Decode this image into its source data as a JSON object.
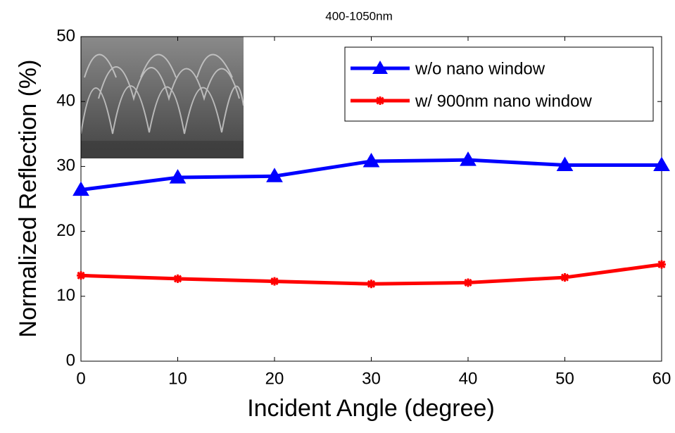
{
  "chart_data": {
    "type": "line",
    "title": "400-1050nm",
    "xlabel": "Incident Angle (degree)",
    "ylabel": "Normalized Reflection (%)",
    "x": [
      0,
      10,
      20,
      30,
      40,
      50,
      60
    ],
    "series": [
      {
        "name": "w/o nano window",
        "color": "#0000ff",
        "marker": "triangle",
        "values": [
          26.4,
          28.3,
          28.5,
          30.8,
          31.0,
          30.2,
          30.2
        ]
      },
      {
        "name": "w/ 900nm nano window",
        "color": "#ff0000",
        "marker": "star",
        "values": [
          13.2,
          12.7,
          12.3,
          11.9,
          12.1,
          12.9,
          14.9
        ]
      }
    ],
    "xlim": [
      0,
      60
    ],
    "xticks": [
      0,
      10,
      20,
      30,
      40,
      50,
      60
    ],
    "ylim": [
      0,
      50
    ],
    "yticks": [
      0,
      10,
      20,
      30,
      40,
      50
    ],
    "legend": "upper right"
  }
}
